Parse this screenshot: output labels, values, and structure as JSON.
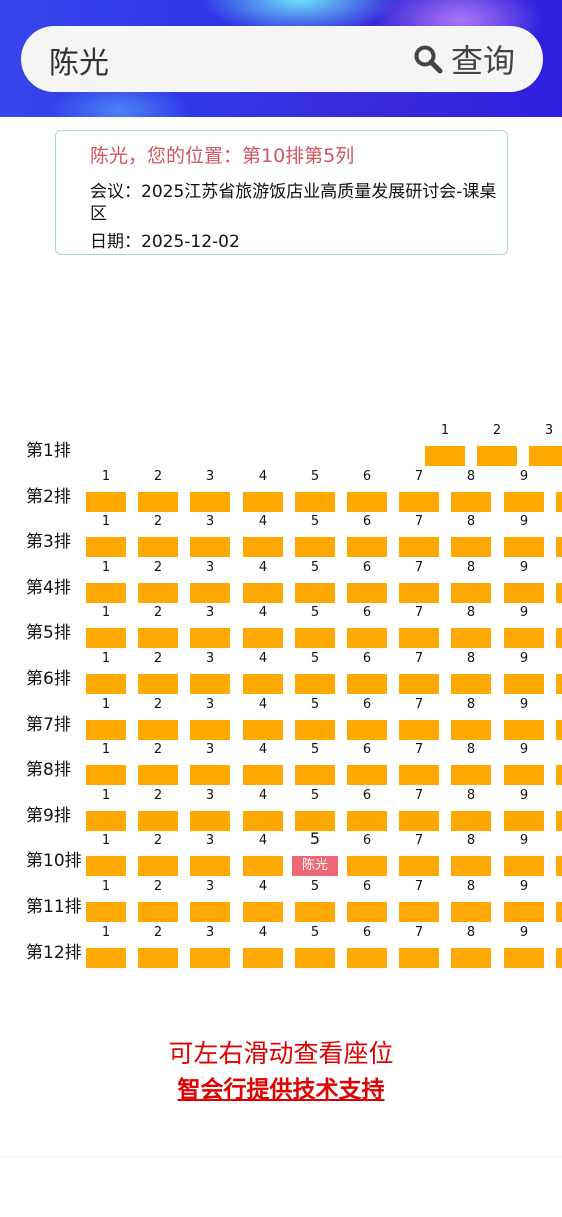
{
  "search": {
    "value": "陈光",
    "button_label": "查询",
    "icon": "search-icon"
  },
  "info": {
    "location": "陈光，您的位置：第10排第5列",
    "meeting": "会议：2025江苏省旅游饭店业高质量发展研讨会-课桌区",
    "date": "日期：2025-12-02"
  },
  "seat_map": {
    "rows": [
      {
        "label": "第1排",
        "cols": [
          "1",
          "2",
          "3"
        ]
      },
      {
        "label": "第2排",
        "cols": [
          "1",
          "2",
          "3",
          "4",
          "5",
          "6",
          "7",
          "8",
          "9"
        ]
      },
      {
        "label": "第3排",
        "cols": [
          "1",
          "2",
          "3",
          "4",
          "5",
          "6",
          "7",
          "8",
          "9"
        ]
      },
      {
        "label": "第4排",
        "cols": [
          "1",
          "2",
          "3",
          "4",
          "5",
          "6",
          "7",
          "8",
          "9"
        ]
      },
      {
        "label": "第5排",
        "cols": [
          "1",
          "2",
          "3",
          "4",
          "5",
          "6",
          "7",
          "8",
          "9"
        ]
      },
      {
        "label": "第6排",
        "cols": [
          "1",
          "2",
          "3",
          "4",
          "5",
          "6",
          "7",
          "8",
          "9"
        ]
      },
      {
        "label": "第7排",
        "cols": [
          "1",
          "2",
          "3",
          "4",
          "5",
          "6",
          "7",
          "8",
          "9"
        ]
      },
      {
        "label": "第8排",
        "cols": [
          "1",
          "2",
          "3",
          "4",
          "5",
          "6",
          "7",
          "8",
          "9"
        ]
      },
      {
        "label": "第9排",
        "cols": [
          "1",
          "2",
          "3",
          "4",
          "5",
          "6",
          "7",
          "8",
          "9"
        ]
      },
      {
        "label": "第10排",
        "cols": [
          "1",
          "2",
          "3",
          "4",
          "5",
          "6",
          "7",
          "8",
          "9"
        ]
      },
      {
        "label": "第11排",
        "cols": [
          "1",
          "2",
          "3",
          "4",
          "5",
          "6",
          "7",
          "8",
          "9"
        ]
      },
      {
        "label": "第12排",
        "cols": [
          "1",
          "2",
          "3",
          "4",
          "5",
          "6",
          "7",
          "8",
          "9"
        ]
      }
    ],
    "highlight": {
      "row": 10,
      "col": 5,
      "label": "陈光"
    },
    "colors": {
      "seat": "#ffa800",
      "highlight": "#ee6775"
    }
  },
  "footer": {
    "hint": "可左右滑动查看座位",
    "support": "智会行提供技术支持"
  }
}
